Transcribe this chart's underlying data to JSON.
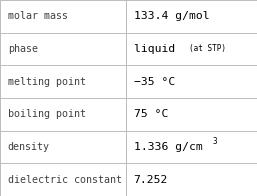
{
  "rows": [
    {
      "label": "molar mass",
      "value": "133.4 g/mol",
      "superscript": null,
      "small_suffix": null
    },
    {
      "label": "phase",
      "value": "liquid",
      "superscript": null,
      "small_suffix": "(at STP)"
    },
    {
      "label": "melting point",
      "value": "−35 °C",
      "superscript": null,
      "small_suffix": null
    },
    {
      "label": "boiling point",
      "value": "75 °C",
      "superscript": null,
      "small_suffix": null
    },
    {
      "label": "density",
      "value": "1.336 g/cm",
      "superscript": "3",
      "small_suffix": null
    },
    {
      "label": "dielectric constant",
      "value": "7.252",
      "superscript": null,
      "small_suffix": null
    }
  ],
  "col_split": 0.49,
  "bg_color": "#ffffff",
  "border_color": "#bbbbbb",
  "label_fontsize": 7.2,
  "value_fontsize": 8.2,
  "small_fontsize": 5.5,
  "sup_fontsize": 5.5,
  "label_color": "#404040",
  "value_color": "#000000",
  "font_family": "DejaVu Sans Mono"
}
